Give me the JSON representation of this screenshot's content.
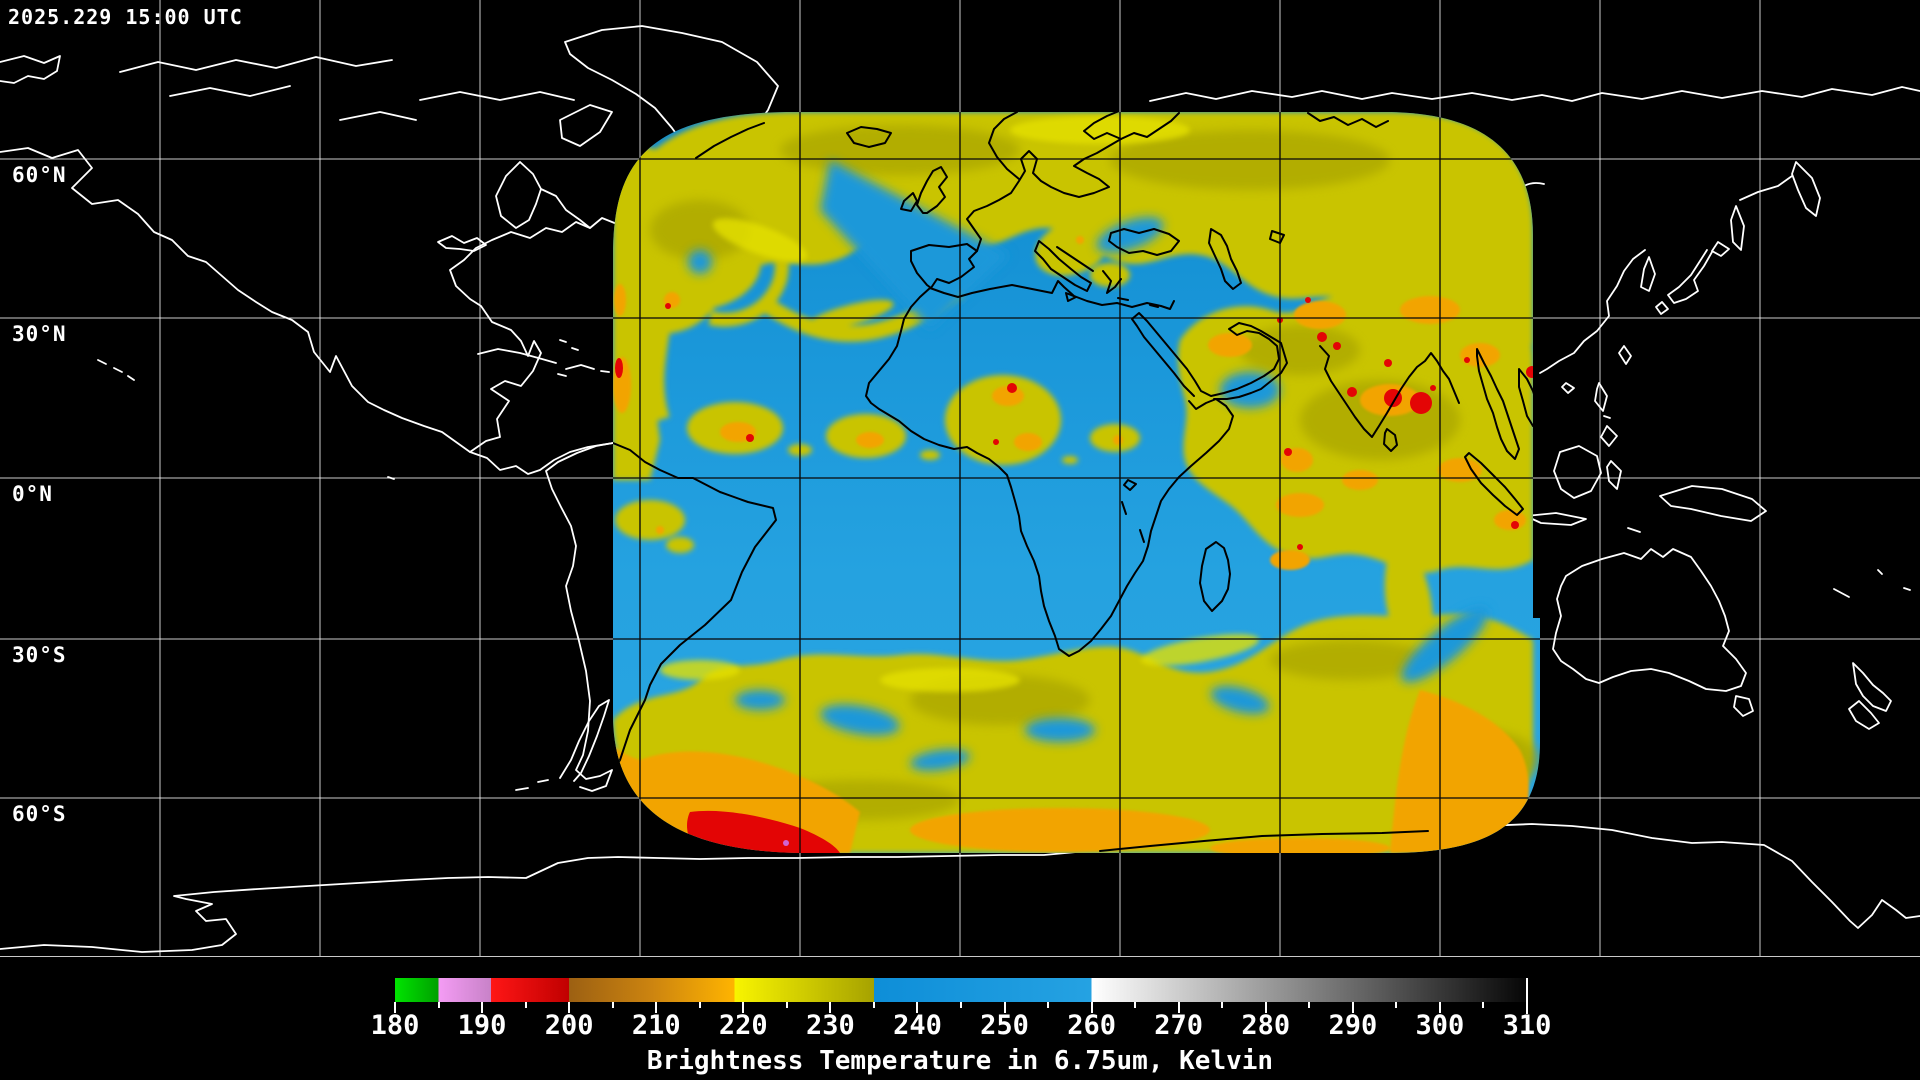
{
  "header": {
    "timestamp": "2025.229 15:00 UTC"
  },
  "map": {
    "latitude_labels": [
      "60°N",
      "30°N",
      "0°N",
      "30°S",
      "60°S"
    ]
  },
  "colorbar": {
    "caption": "Brightness Temperature in 6.75um, Kelvin",
    "min": 180,
    "max": 310,
    "tick_labels": [
      "180",
      "190",
      "200",
      "210",
      "220",
      "230",
      "240",
      "250",
      "260",
      "270",
      "280",
      "290",
      "300",
      "310"
    ],
    "segments": [
      {
        "from": 180,
        "to": 185,
        "colors": [
          "#00e400",
          "#00a000"
        ]
      },
      {
        "from": 185,
        "to": 191,
        "colors": [
          "#f49cf4",
          "#c882c8"
        ]
      },
      {
        "from": 191,
        "to": 200,
        "colors": [
          "#ff1616",
          "#c00000"
        ]
      },
      {
        "from": 200,
        "to": 219,
        "colors": [
          "#9c6012",
          "#cc8410",
          "#ffb400"
        ]
      },
      {
        "from": 219,
        "to": 235,
        "colors": [
          "#f8f400",
          "#a6a200"
        ]
      },
      {
        "from": 235,
        "to": 260,
        "colors": [
          "#0e8ed8",
          "#25a2e2"
        ]
      },
      {
        "from": 260,
        "to": 310,
        "colors": [
          "#ffffff",
          "#060606"
        ]
      }
    ]
  },
  "palette": {
    "ocean_dry": "#1b98d9",
    "ocean_light": "#2fa7e2",
    "cloud_yellow": "#c9c400",
    "cloud_yellow_bright": "#e4e000",
    "cloud_olive": "#a6a200",
    "cloud_orange": "#f2a400",
    "cloud_red": "#e30505",
    "cloud_violet": "#d264d2",
    "coast_out": "#ffffff",
    "coast_in": "#000000",
    "grid_out": "#ffffff",
    "grid_in": "#0a0a0a"
  }
}
